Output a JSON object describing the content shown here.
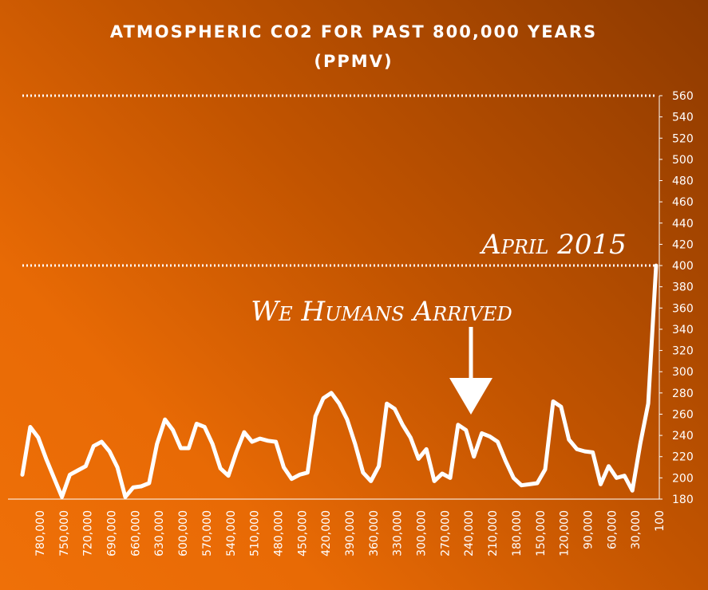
{
  "chart_data": {
    "type": "line",
    "title": "ATMOSPHERIC CO2 FOR PAST 800,000 YEARS",
    "subtitle": "(PPMV)",
    "ylim": [
      180,
      560
    ],
    "yticks": [
      180,
      200,
      220,
      240,
      260,
      280,
      300,
      320,
      340,
      360,
      380,
      400,
      420,
      440,
      460,
      480,
      500,
      520,
      540,
      560
    ],
    "xtick_labels": [
      "780,000",
      "750,000",
      "720,000",
      "690,000",
      "660,000",
      "630,000",
      "600,000",
      "570,000",
      "540,000",
      "510,000",
      "480,000",
      "450,000",
      "420,000",
      "390,000",
      "360,000",
      "330,000",
      "300,000",
      "270,000",
      "240,000",
      "210,000",
      "180,000",
      "150,000",
      "120,000",
      "90,000",
      "60,000",
      "30,000",
      "100"
    ],
    "reference_lines": [
      400,
      560
    ],
    "series": [
      {
        "values": [
          203,
          248,
          238,
          218,
          200,
          182,
          203,
          207,
          211,
          230,
          234,
          225,
          210,
          182,
          191,
          192,
          195,
          232,
          255,
          245,
          228,
          228,
          251,
          248,
          232,
          209,
          202,
          224,
          243,
          234,
          237,
          235,
          234,
          210,
          199,
          203,
          205,
          258,
          275,
          280,
          270,
          255,
          232,
          205,
          197,
          211,
          270,
          265,
          250,
          238,
          218,
          227,
          197,
          204,
          200,
          250,
          245,
          220,
          242,
          239,
          234,
          216,
          200,
          193,
          194,
          195,
          208,
          272,
          267,
          236,
          227,
          225,
          224,
          194,
          211,
          200,
          202,
          188,
          232,
          270,
          400
        ]
      }
    ],
    "annotations": [
      {
        "text": "April 2015",
        "value": 400
      },
      {
        "text": "We Humans Arrived",
        "value": 250
      }
    ]
  }
}
